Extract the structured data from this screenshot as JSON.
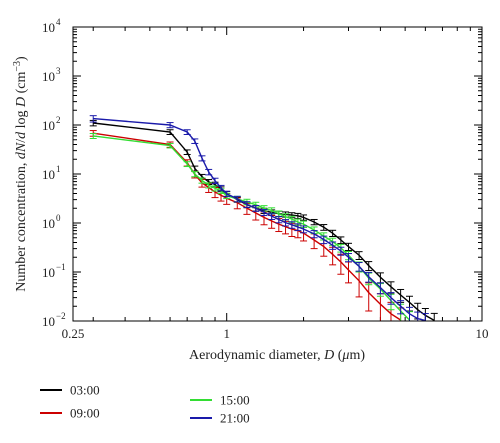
{
  "chart_data": {
    "type": "line",
    "x_scale": "log",
    "y_scale": "log",
    "xlim": [
      0.25,
      10
    ],
    "ylim": [
      0.01,
      10000
    ],
    "xlabel": "Aerodynamic diameter, D (μm)",
    "ylabel": "Number concentration, dN/d log D (cm⁻³)",
    "x_ticks": [
      {
        "value": 0.25,
        "label": "0.25"
      },
      {
        "value": 1,
        "label": "1"
      },
      {
        "value": 10,
        "label": "10"
      }
    ],
    "y_ticks": [
      {
        "value": 0.01,
        "base": "10",
        "exp": "−2"
      },
      {
        "value": 0.1,
        "base": "10",
        "exp": "−1"
      },
      {
        "value": 1,
        "base": "10",
        "exp": "0"
      },
      {
        "value": 10,
        "base": "10",
        "exp": "1"
      },
      {
        "value": 100,
        "base": "10",
        "exp": "2"
      },
      {
        "value": 1000,
        "base": "10",
        "exp": "3"
      },
      {
        "value": 10000,
        "base": "10",
        "exp": "4"
      }
    ],
    "legend_position": "bottom",
    "series": [
      {
        "name": "03:00",
        "color": "#000000",
        "x": [
          0.3,
          0.6,
          0.7,
          0.75,
          0.8,
          0.85,
          0.9,
          0.95,
          1.0,
          1.1,
          1.2,
          1.3,
          1.4,
          1.5,
          1.6,
          1.7,
          1.8,
          1.9,
          2.0,
          2.2,
          2.4,
          2.6,
          2.8,
          3.0,
          3.3,
          3.6,
          4.0,
          4.4,
          4.8,
          5.2,
          5.6,
          6.0,
          6.5
        ],
        "y": [
          110,
          72,
          28,
          13,
          8.8,
          6.9,
          6.1,
          4.9,
          3.95,
          3.0,
          2.35,
          2.0,
          1.78,
          1.65,
          1.55,
          1.5,
          1.45,
          1.4,
          1.3,
          1.05,
          0.82,
          0.62,
          0.45,
          0.33,
          0.22,
          0.135,
          0.078,
          0.05,
          0.034,
          0.024,
          0.017,
          0.013,
          0.0103
        ],
        "err": [
          14,
          8,
          3,
          1.5,
          1,
          0.8,
          0.7,
          0.55,
          0.45,
          0.35,
          0.3,
          0.25,
          0.22,
          0.2,
          0.19,
          0.18,
          0.17,
          0.17,
          0.16,
          0.13,
          0.11,
          0.09,
          0.07,
          0.055,
          0.04,
          0.028,
          0.018,
          0.013,
          0.01,
          0.008,
          0.006,
          0.005,
          0.004
        ]
      },
      {
        "name": "09:00",
        "color": "#cc0000",
        "x": [
          0.3,
          0.6,
          0.7,
          0.75,
          0.8,
          0.85,
          0.9,
          0.95,
          1.0,
          1.1,
          1.2,
          1.3,
          1.4,
          1.5,
          1.6,
          1.7,
          1.8,
          1.9,
          2.0,
          2.2,
          2.4,
          2.6,
          2.8,
          3.0,
          3.3,
          3.6,
          4.0,
          4.4,
          4.8
        ],
        "y": [
          68,
          40,
          17,
          9.8,
          6.6,
          5.3,
          4.3,
          3.7,
          3.2,
          2.6,
          2.0,
          1.6,
          1.3,
          1.1,
          0.95,
          0.84,
          0.75,
          0.7,
          0.62,
          0.45,
          0.33,
          0.23,
          0.16,
          0.11,
          0.066,
          0.038,
          0.022,
          0.014,
          0.0105
        ],
        "err": [
          9,
          5,
          2.5,
          1.5,
          1.2,
          1.1,
          1.0,
          0.9,
          0.8,
          0.65,
          0.5,
          0.45,
          0.38,
          0.32,
          0.28,
          0.24,
          0.22,
          0.2,
          0.19,
          0.15,
          0.12,
          0.09,
          0.07,
          0.05,
          0.035,
          0.022,
          0.014,
          0.01,
          0.008
        ]
      },
      {
        "name": "15:00",
        "color": "#33dd33",
        "x": [
          0.3,
          0.6,
          0.7,
          0.75,
          0.8,
          0.85,
          0.9,
          0.95,
          1.0,
          1.1,
          1.2,
          1.3,
          1.4,
          1.5,
          1.6,
          1.7,
          1.8,
          1.9,
          2.0,
          2.2,
          2.4,
          2.6,
          2.8,
          3.0,
          3.3,
          3.6,
          4.0,
          4.4,
          4.8,
          5.2
        ],
        "y": [
          60,
          38,
          16,
          10,
          7.4,
          5.9,
          5.1,
          4.5,
          3.6,
          3.1,
          2.7,
          2.35,
          2.0,
          1.8,
          1.55,
          1.35,
          1.2,
          1.05,
          0.95,
          0.72,
          0.54,
          0.42,
          0.31,
          0.22,
          0.13,
          0.075,
          0.045,
          0.026,
          0.016,
          0.0105
        ],
        "err": [
          7,
          4,
          1.8,
          1.2,
          0.9,
          0.7,
          0.6,
          0.5,
          0.45,
          0.4,
          0.35,
          0.3,
          0.26,
          0.24,
          0.21,
          0.19,
          0.17,
          0.15,
          0.14,
          0.11,
          0.09,
          0.07,
          0.055,
          0.042,
          0.03,
          0.02,
          0.013,
          0.009,
          0.006,
          0.005
        ]
      },
      {
        "name": "21:00",
        "color": "#1a1aaa",
        "x": [
          0.3,
          0.6,
          0.7,
          0.75,
          0.8,
          0.85,
          0.9,
          0.95,
          1.0,
          1.1,
          1.2,
          1.3,
          1.4,
          1.5,
          1.6,
          1.7,
          1.8,
          1.9,
          2.0,
          2.2,
          2.4,
          2.6,
          2.8,
          3.0,
          3.3,
          3.6,
          4.0,
          4.4,
          4.8,
          5.2,
          5.6,
          6.0
        ],
        "y": [
          135,
          100,
          72,
          47,
          21,
          11,
          7.3,
          5.2,
          3.95,
          3.1,
          2.4,
          2.0,
          1.65,
          1.38,
          1.18,
          1.02,
          0.92,
          0.83,
          0.75,
          0.6,
          0.46,
          0.35,
          0.27,
          0.2,
          0.13,
          0.08,
          0.048,
          0.03,
          0.02,
          0.014,
          0.0112,
          0.0102
        ],
        "err": [
          20,
          12,
          8,
          5,
          2.5,
          1.4,
          0.9,
          0.65,
          0.5,
          0.4,
          0.32,
          0.27,
          0.23,
          0.2,
          0.17,
          0.15,
          0.14,
          0.13,
          0.12,
          0.1,
          0.08,
          0.06,
          0.05,
          0.038,
          0.026,
          0.018,
          0.012,
          0.008,
          0.006,
          0.005,
          0.004,
          0.004
        ]
      }
    ]
  }
}
